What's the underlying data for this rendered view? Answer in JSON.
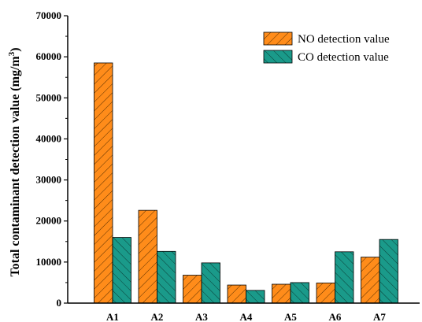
{
  "chart_data": {
    "type": "bar",
    "categories": [
      "A1",
      "A2",
      "A3",
      "A4",
      "A5",
      "A6",
      "A7"
    ],
    "series": [
      {
        "name": "NO detection value",
        "color": "#FF8C1A",
        "values": [
          58500,
          22600,
          6800,
          4400,
          4600,
          4900,
          11200
        ]
      },
      {
        "name": "CO detection value",
        "color": "#1A9A8A",
        "values": [
          16000,
          12600,
          9800,
          3100,
          5000,
          12500,
          15500
        ]
      }
    ],
    "title": "",
    "xlabel": "",
    "ylabel": "Total contaminant detection value (mg/m",
    "ylabel_superscript": "3",
    "ylabel_suffix": ")",
    "ylim": [
      0,
      70000
    ],
    "yticks": [
      "0",
      "10000",
      "20000",
      "30000",
      "40000",
      "50000",
      "60000",
      "70000"
    ],
    "grid": false,
    "legend_position": "top-right",
    "bar_pattern": "hatched"
  }
}
